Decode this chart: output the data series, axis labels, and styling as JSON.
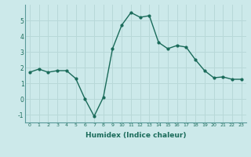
{
  "x": [
    0,
    1,
    2,
    3,
    4,
    5,
    6,
    7,
    8,
    9,
    10,
    11,
    12,
    13,
    14,
    15,
    16,
    17,
    18,
    19,
    20,
    21,
    22,
    23
  ],
  "y": [
    1.7,
    1.9,
    1.7,
    1.8,
    1.8,
    1.3,
    0.0,
    -1.1,
    0.1,
    3.2,
    4.7,
    5.5,
    5.2,
    5.3,
    3.6,
    3.2,
    3.4,
    3.3,
    2.5,
    1.8,
    1.35,
    1.4,
    1.25,
    1.25
  ],
  "xlim": [
    -0.5,
    23.5
  ],
  "ylim": [
    -1.5,
    6.0
  ],
  "yticks": [
    -1,
    0,
    1,
    2,
    3,
    4,
    5
  ],
  "xticks": [
    0,
    1,
    2,
    3,
    4,
    5,
    6,
    7,
    8,
    9,
    10,
    11,
    12,
    13,
    14,
    15,
    16,
    17,
    18,
    19,
    20,
    21,
    22,
    23
  ],
  "xlabel": "Humidex (Indice chaleur)",
  "line_color": "#1a6b5a",
  "marker": "o",
  "marker_size": 2.0,
  "line_width": 1.0,
  "bg_color": "#cce9ea",
  "grid_color": "#b8d8d8",
  "tick_color": "#1a6b5a",
  "label_color": "#1a6b5a",
  "spine_color": "#5a9a9a"
}
